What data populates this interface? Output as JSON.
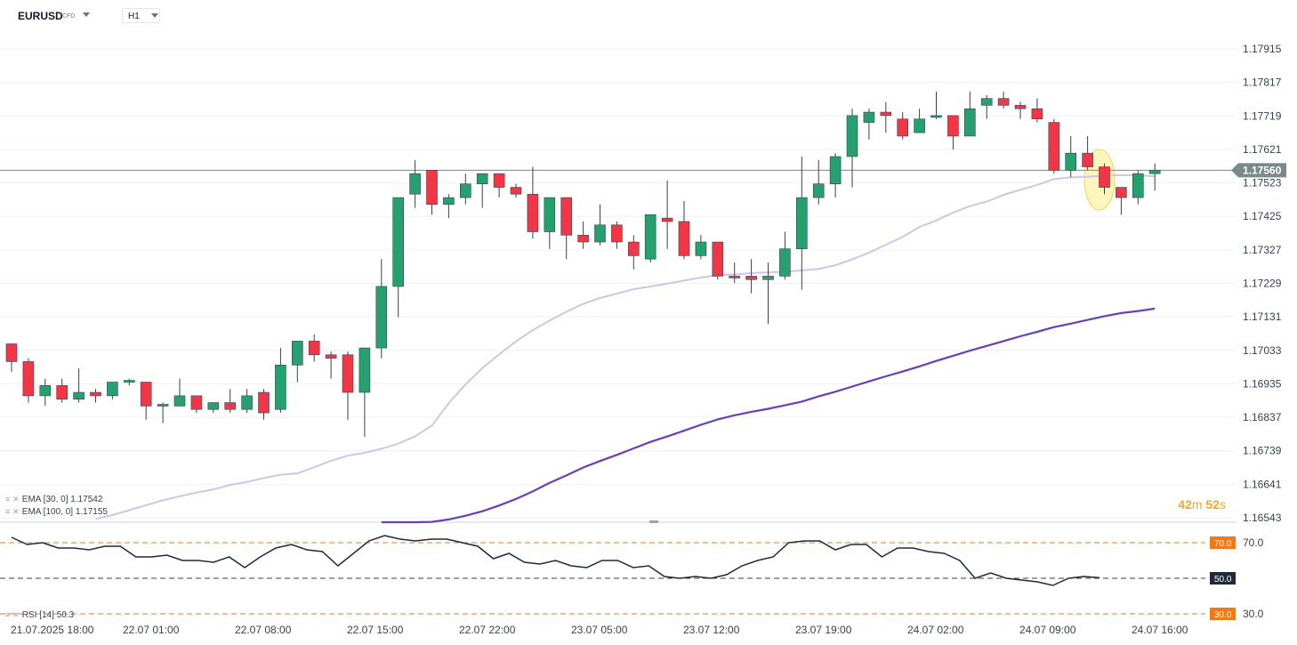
{
  "toolbar": {
    "symbol": "EURUSD",
    "symbol_type": "CFD",
    "timeframe": "H1"
  },
  "indicators": {
    "ema30_label": "EMA [30, 0]",
    "ema30_value": "1.17542",
    "ema100_label": "EMA [100, 0]",
    "ema100_value": "1.17155",
    "rsi_label": "RSI [14]",
    "rsi_value": "50.3"
  },
  "countdown": {
    "minutes": "42",
    "minutes_unit": "m",
    "seconds": "52",
    "seconds_unit": "s"
  },
  "colors": {
    "up": "#26a06e",
    "down": "#f23645",
    "ema30": "#cdc6e8",
    "ema100": "#6a3fb5",
    "price_line": "#7a8a8a",
    "level_orange": "#f07a1a",
    "highlight": "#fff3a8"
  },
  "chart_data": {
    "type": "candlestick",
    "current_price": "1.17560",
    "ylim": [
      1.1654,
      1.17954
    ],
    "y_ticks": [
      "1.17915",
      "1.17817",
      "1.17719",
      "1.17621",
      "1.17523",
      "1.17425",
      "1.17327",
      "1.17229",
      "1.17131",
      "1.17033",
      "1.16935",
      "1.16837",
      "1.16739",
      "1.16641",
      "1.16543"
    ],
    "x_ticks": [
      "21.07.2025  18:00",
      "22.07  01:00",
      "22.07  08:00",
      "22.07  15:00",
      "22.07  22:00",
      "23.07  05:00",
      "23.07  12:00",
      "23.07  19:00",
      "24.07  02:00",
      "24.07  09:00",
      "24.07  16:00"
    ],
    "candles": [
      [
        1.17052,
        1.1705,
        1.1697,
        1.17
      ],
      [
        1.17,
        1.1701,
        1.1688,
        1.169
      ],
      [
        1.169,
        1.1695,
        1.1687,
        1.1693
      ],
      [
        1.1693,
        1.1695,
        1.1688,
        1.1689
      ],
      [
        1.1689,
        1.1698,
        1.1688,
        1.1691
      ],
      [
        1.1691,
        1.1692,
        1.1688,
        1.169
      ],
      [
        1.169,
        1.1694,
        1.1689,
        1.1694
      ],
      [
        1.1694,
        1.1695,
        1.1693,
        1.16945
      ],
      [
        1.1694,
        1.1694,
        1.1683,
        1.1687
      ],
      [
        1.1687,
        1.1688,
        1.1682,
        1.16875
      ],
      [
        1.1687,
        1.1695,
        1.1687,
        1.169
      ],
      [
        1.169,
        1.169,
        1.1685,
        1.1686
      ],
      [
        1.1686,
        1.1688,
        1.1685,
        1.1688
      ],
      [
        1.1688,
        1.1692,
        1.1685,
        1.1686
      ],
      [
        1.1686,
        1.1692,
        1.1685,
        1.169
      ],
      [
        1.1691,
        1.1692,
        1.1683,
        1.1685
      ],
      [
        1.1686,
        1.1704,
        1.1685,
        1.1699
      ],
      [
        1.1699,
        1.1706,
        1.1694,
        1.1706
      ],
      [
        1.1706,
        1.1708,
        1.17,
        1.1702
      ],
      [
        1.1702,
        1.1703,
        1.1695,
        1.1701
      ],
      [
        1.1702,
        1.1703,
        1.1683,
        1.1691
      ],
      [
        1.1691,
        1.1703,
        1.1678,
        1.1704
      ],
      [
        1.1704,
        1.173,
        1.1701,
        1.1722
      ],
      [
        1.1722,
        1.1748,
        1.1713,
        1.1748
      ],
      [
        1.1749,
        1.1759,
        1.1745,
        1.1755
      ],
      [
        1.1756,
        1.1756,
        1.1743,
        1.1746
      ],
      [
        1.1746,
        1.1749,
        1.1742,
        1.1748
      ],
      [
        1.1748,
        1.1755,
        1.1746,
        1.1752
      ],
      [
        1.1752,
        1.1755,
        1.1745,
        1.1755
      ],
      [
        1.1755,
        1.1755,
        1.1748,
        1.1751
      ],
      [
        1.1751,
        1.1752,
        1.1748,
        1.1749
      ],
      [
        1.1749,
        1.1757,
        1.1736,
        1.1738
      ],
      [
        1.1738,
        1.1748,
        1.1733,
        1.1748
      ],
      [
        1.1748,
        1.1748,
        1.173,
        1.1737
      ],
      [
        1.1737,
        1.1741,
        1.1733,
        1.1735
      ],
      [
        1.1735,
        1.1746,
        1.1734,
        1.174
      ],
      [
        1.174,
        1.1741,
        1.1733,
        1.1735
      ],
      [
        1.1735,
        1.1737,
        1.1727,
        1.1731
      ],
      [
        1.173,
        1.1743,
        1.1729,
        1.1743
      ],
      [
        1.1742,
        1.1753,
        1.1733,
        1.1741
      ],
      [
        1.1741,
        1.1747,
        1.173,
        1.1731
      ],
      [
        1.1731,
        1.1737,
        1.173,
        1.1735
      ],
      [
        1.1735,
        1.1735,
        1.1724,
        1.1725
      ],
      [
        1.1725,
        1.1729,
        1.1723,
        1.17245
      ],
      [
        1.1725,
        1.173,
        1.172,
        1.1724
      ],
      [
        1.1724,
        1.1729,
        1.1711,
        1.1725
      ],
      [
        1.1725,
        1.1738,
        1.1724,
        1.1733
      ],
      [
        1.1733,
        1.176,
        1.1721,
        1.1748
      ],
      [
        1.1748,
        1.1759,
        1.1746,
        1.1752
      ],
      [
        1.1752,
        1.1761,
        1.1748,
        1.176
      ],
      [
        1.176,
        1.1774,
        1.1751,
        1.1772
      ],
      [
        1.177,
        1.1774,
        1.1765,
        1.1773
      ],
      [
        1.1773,
        1.1776,
        1.1767,
        1.1772
      ],
      [
        1.1771,
        1.1773,
        1.1765,
        1.1766
      ],
      [
        1.1767,
        1.1774,
        1.1767,
        1.1771
      ],
      [
        1.1772,
        1.1779,
        1.1771,
        1.1772
      ],
      [
        1.1772,
        1.1772,
        1.1762,
        1.1766
      ],
      [
        1.1766,
        1.1779,
        1.1766,
        1.1774
      ],
      [
        1.1775,
        1.1778,
        1.1771,
        1.1777
      ],
      [
        1.1777,
        1.1779,
        1.1774,
        1.1775
      ],
      [
        1.1775,
        1.1776,
        1.1771,
        1.1774
      ],
      [
        1.1774,
        1.1777,
        1.177,
        1.1771
      ],
      [
        1.177,
        1.1771,
        1.1755,
        1.1756
      ],
      [
        1.1756,
        1.1766,
        1.1754,
        1.1761
      ],
      [
        1.1761,
        1.1766,
        1.1756,
        1.1757
      ],
      [
        1.1757,
        1.1758,
        1.1749,
        1.1751
      ],
      [
        1.1751,
        1.1751,
        1.1743,
        1.1748
      ],
      [
        1.1748,
        1.1756,
        1.1746,
        1.1755
      ],
      [
        1.1755,
        1.1758,
        1.175,
        1.1756
      ]
    ],
    "ema30": [
      1.1654,
      1.16551,
      1.16565,
      1.1658,
      1.16594,
      1.16606,
      1.16617,
      1.16626,
      1.16639,
      1.16648,
      1.16659,
      1.16669,
      1.16673,
      1.16691,
      1.1671,
      1.16725,
      1.16733,
      1.16745,
      1.1676,
      1.16781,
      1.16813,
      1.16878,
      1.16933,
      1.16981,
      1.17021,
      1.17059,
      1.17092,
      1.1712,
      1.17146,
      1.17169,
      1.17186,
      1.17199,
      1.17212,
      1.1722,
      1.17228,
      1.17237,
      1.17246,
      1.17253,
      1.17255,
      1.17259,
      1.17261,
      1.17263,
      1.17267,
      1.17271,
      1.17282,
      1.17299,
      1.17319,
      1.17342,
      1.17365,
      1.17394,
      1.17413,
      1.17436,
      1.17455,
      1.17468,
      1.17488,
      1.17503,
      1.17517,
      1.17534,
      1.17539,
      1.17541,
      1.17544,
      1.17546,
      1.17545,
      1.17542
    ],
    "ema100": [
      1.16514,
      1.16519,
      1.16525,
      1.16531,
      1.16538,
      1.16549,
      1.16562,
      1.16579,
      1.16598,
      1.1662,
      1.16645,
      1.16667,
      1.1669,
      1.16709,
      1.16727,
      1.16746,
      1.16765,
      1.16781,
      1.16798,
      1.16815,
      1.16831,
      1.16843,
      1.16853,
      1.16862,
      1.16872,
      1.16883,
      1.16898,
      1.16912,
      1.16927,
      1.16942,
      1.16957,
      1.16971,
      1.16986,
      1.17002,
      1.17017,
      1.17032,
      1.17046,
      1.1706,
      1.17074,
      1.17087,
      1.17101,
      1.17111,
      1.17122,
      1.17133,
      1.17142,
      1.17148,
      1.17155
    ],
    "rsi": {
      "ylim": [
        25,
        80
      ],
      "levels": [
        "70.0",
        "50.0",
        "30.0"
      ],
      "tick_labels": [
        "70.0",
        "30.0"
      ],
      "values": [
        73,
        69,
        70,
        67,
        67,
        66,
        68,
        68,
        62,
        62,
        63,
        60,
        60,
        59,
        62,
        56,
        62,
        67,
        69,
        66,
        65,
        57,
        64,
        71,
        74,
        72,
        71,
        72,
        72,
        70,
        68,
        61,
        64,
        59,
        58,
        60,
        57,
        56,
        60,
        60,
        56,
        57,
        51,
        50,
        51,
        50,
        52,
        57,
        60,
        62,
        70,
        71,
        71,
        66,
        69,
        69,
        62,
        67,
        67,
        65,
        64,
        60,
        50,
        53,
        50,
        49,
        48,
        46,
        50,
        51,
        50.3
      ]
    }
  }
}
